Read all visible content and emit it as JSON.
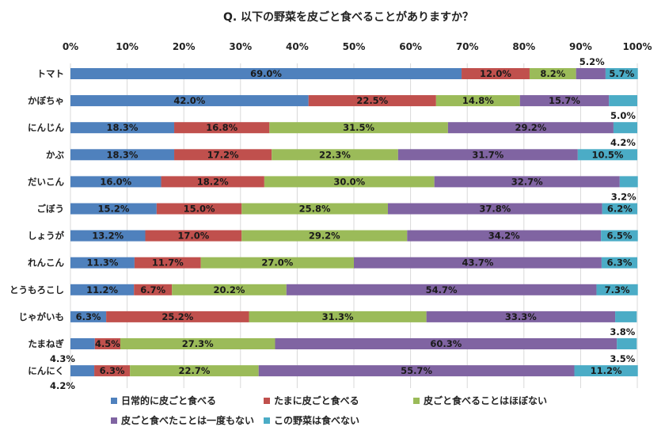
{
  "chart_data": {
    "type": "bar",
    "orientation": "horizontal",
    "stacked": true,
    "title": "Q. 以下の野菜を皮ごと食べることがありますか？",
    "xlim": [
      0,
      100
    ],
    "x_ticks": [
      "0%",
      "10%",
      "20%",
      "30%",
      "40%",
      "50%",
      "60%",
      "70%",
      "80%",
      "90%",
      "100%"
    ],
    "grid": true,
    "legend_position": "bottom",
    "categories": [
      "トマト",
      "かぼちゃ",
      "にんじん",
      "かぶ",
      "だいこん",
      "ごぼう",
      "しょうが",
      "れんこん",
      "とうもろこし",
      "じゃがいも",
      "たまねぎ",
      "にんにく"
    ],
    "series": [
      {
        "name": "日常的に皮ごと食べる",
        "color": "#4f81bd",
        "values": [
          69.0,
          42.0,
          18.3,
          18.3,
          16.0,
          15.2,
          13.2,
          11.3,
          11.2,
          6.3,
          4.3,
          4.2
        ]
      },
      {
        "name": "たまに皮ごと食べる",
        "color": "#c0504d",
        "values": [
          12.0,
          22.5,
          16.8,
          17.2,
          18.2,
          15.0,
          17.0,
          11.7,
          6.7,
          25.2,
          4.5,
          6.3
        ]
      },
      {
        "name": "皮ごと食べることはほぼない",
        "color": "#9bbb59",
        "values": [
          8.2,
          14.8,
          31.5,
          22.3,
          30.0,
          25.8,
          29.2,
          27.0,
          20.2,
          31.3,
          27.3,
          22.7
        ]
      },
      {
        "name": "皮ごと食べたことは一度もない",
        "color": "#8064a2",
        "values": [
          5.2,
          15.7,
          29.2,
          31.7,
          32.7,
          37.8,
          34.2,
          43.7,
          54.7,
          33.3,
          60.3,
          55.7
        ]
      },
      {
        "name": "この野菜は食べない",
        "color": "#4bacc6",
        "values": [
          5.7,
          5.0,
          4.2,
          10.5,
          3.2,
          6.2,
          6.5,
          6.3,
          7.3,
          3.8,
          3.5,
          11.2
        ]
      }
    ],
    "data_labels": [
      [
        "69.0%",
        "12.0%",
        "8.2%",
        "5.2%",
        "5.7%"
      ],
      [
        "42.0%",
        "22.5%",
        "14.8%",
        "15.7%",
        "5.0%"
      ],
      [
        "18.3%",
        "16.8%",
        "31.5%",
        "29.2%",
        "4.2%"
      ],
      [
        "18.3%",
        "17.2%",
        "22.3%",
        "31.7%",
        "10.5%"
      ],
      [
        "16.0%",
        "18.2%",
        "30.0%",
        "32.7%",
        "3.2%"
      ],
      [
        "15.2%",
        "15.0%",
        "25.8%",
        "37.8%",
        "6.2%"
      ],
      [
        "13.2%",
        "17.0%",
        "29.2%",
        "34.2%",
        "6.5%"
      ],
      [
        "11.3%",
        "11.7%",
        "27.0%",
        "43.7%",
        "6.3%"
      ],
      [
        "11.2%",
        "6.7%",
        "20.2%",
        "54.7%",
        "7.3%"
      ],
      [
        "6.3%",
        "25.2%",
        "31.3%",
        "33.3%",
        "3.8%"
      ],
      [
        "4.3%",
        "4.5%",
        "27.3%",
        "60.3%",
        "3.5%"
      ],
      [
        "4.2%",
        "6.3%",
        "22.7%",
        "55.7%",
        "11.2%"
      ]
    ],
    "outside_labels": [
      {
        "row": 0,
        "series": 3,
        "where": "above"
      },
      {
        "row": 1,
        "series": 4,
        "where": "below"
      },
      {
        "row": 2,
        "series": 4,
        "where": "below"
      },
      {
        "row": 4,
        "series": 4,
        "where": "below"
      },
      {
        "row": 9,
        "series": 4,
        "where": "below"
      },
      {
        "row": 10,
        "series": 4,
        "where": "below"
      },
      {
        "row": 10,
        "series": 0,
        "where": "below"
      },
      {
        "row": 11,
        "series": 0,
        "where": "below"
      }
    ]
  }
}
